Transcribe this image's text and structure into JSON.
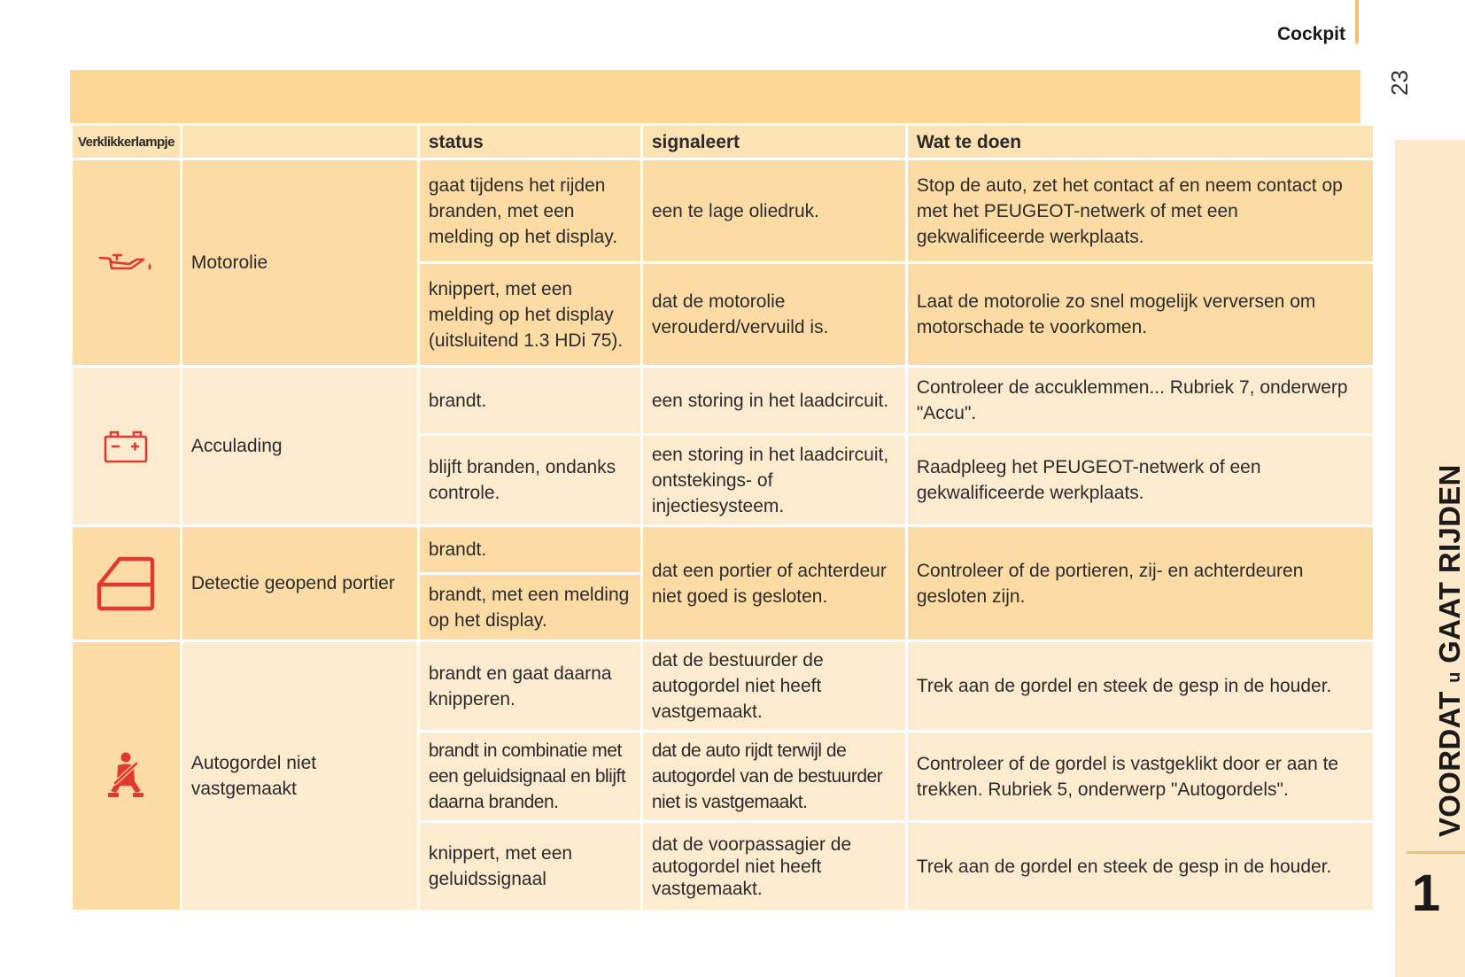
{
  "header": {
    "section": "Cockpit",
    "page": "23"
  },
  "side_tab": {
    "chapter_title": "VOORDAT",
    "chapter_u": "u",
    "chapter_rest": "GAAT RIJDEN",
    "chapter_number": "1"
  },
  "table": {
    "headers": {
      "lamp": "Verklikkerlampje",
      "name": "",
      "status": "status",
      "signal": "signaleert",
      "action": "Wat te doen"
    },
    "groups": [
      {
        "icon": "oil-can-icon",
        "name": "Motorolie",
        "rows": [
          {
            "status": "gaat tijdens het rijden branden, met een melding op het display.",
            "signal": "een te lage oliedruk.",
            "action": "Stop de auto, zet het contact af en neem contact op met het PEUGEOT-netwerk of met een gekwalificeerde werkplaats."
          },
          {
            "status": "knippert, met een melding op het display (uitsluitend 1.3 HDi 75).",
            "signal": "dat de motorolie verouderd/vervuild is.",
            "action": "Laat de motorolie zo snel mogelijk verversen om motorschade te voorkomen."
          }
        ]
      },
      {
        "icon": "battery-icon",
        "name": "Acculading",
        "rows": [
          {
            "status": "brandt.",
            "signal": "een storing in het laadcircuit.",
            "action": "Controleer de accuklemmen... Rubriek 7, onderwerp \"Accu\"."
          },
          {
            "status": "blijft branden, ondanks controle.",
            "signal": "een storing in het laadcircuit, ontstekings- of injectiesysteem.",
            "action": "Raadpleeg het PEUGEOT-netwerk of een gekwalificeerde werkplaats."
          }
        ]
      },
      {
        "icon": "open-door-icon",
        "name": "Detectie geopend portier",
        "status_1": "brandt.",
        "status_2": "brandt, met een melding op het display.",
        "signal": "dat een portier of achterdeur niet goed is gesloten.",
        "action": "Controleer of de portieren, zij- en achterdeuren gesloten zijn."
      },
      {
        "icon": "seatbelt-icon",
        "name": "Autogordel niet vastgemaakt",
        "rows": [
          {
            "status": "brandt en gaat daarna knipperen.",
            "signal": "dat de bestuurder de autogordel niet heeft vastgemaakt.",
            "action": "Trek aan de gordel en steek de gesp in de houder."
          },
          {
            "status": "brandt in combinatie met een geluidsignaal en blijft daarna branden.",
            "signal": "dat de auto rijdt terwijl de autogordel van de bestuurder niet is vastgemaakt.",
            "action": "Controleer of de gordel is vastgeklikt door er aan te trekken. Rubriek 5, onderwerp \"Autogordels\"."
          },
          {
            "status": "knippert, met een geluidssignaal",
            "signal": "dat de voorpassagier de autogordel niet heeft vastgemaakt.",
            "action": "Trek aan de gordel en steek de gesp in de houder."
          }
        ]
      }
    ]
  },
  "colors": {
    "banner": "#fdd696",
    "row_dark": "#fddba5",
    "row_light": "#fdebd0",
    "icon_red": "#e03a2f",
    "accent_rule": "#f6bf6a"
  }
}
